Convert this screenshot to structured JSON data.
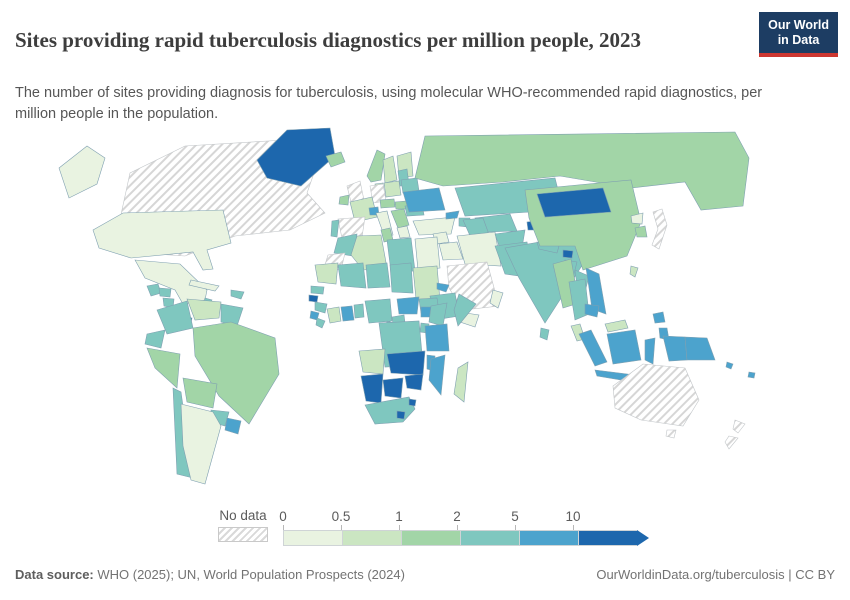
{
  "header": {
    "title": "Sites providing rapid tuberculosis diagnostics per million people, 2023",
    "logo": {
      "line1": "Our World",
      "line2": "in Data"
    }
  },
  "subtitle": "The number of sites providing diagnosis for tuberculosis, using molecular WHO-recommended rapid diagnostics, per million people in the population.",
  "legend": {
    "no_data_label": "No data",
    "tick_labels": [
      "0",
      "0.5",
      "1",
      "2",
      "5",
      "10"
    ],
    "bin_colors": [
      "#e9f3e1",
      "#cbe6c2",
      "#a2d5a7",
      "#7fc7bf",
      "#4ca3cd",
      "#1d67ad"
    ]
  },
  "footer": {
    "source_label": "Data source:",
    "source_text": " WHO (2025); UN, World Population Prospects (2024)",
    "link_text": "OurWorldinData.org/tuberculosis | CC BY"
  },
  "colors": {
    "logo_bg": "#1d3d63",
    "logo_red": "#cd3731",
    "title_text": "#3d3d3d",
    "border_stroke": "#7fa0b1",
    "no_data_stroke": "#c2c6c9"
  },
  "chart_data": {
    "type": "choropleth",
    "title": "Sites providing rapid tuberculosis diagnostics per million people",
    "year": 2023,
    "unit": "sites per million people",
    "legend_position": "bottom",
    "bins": [
      {
        "range": "0-0.5",
        "color": "#e9f3e1"
      },
      {
        "range": "0.5-1",
        "color": "#cbe6c2"
      },
      {
        "range": "1-2",
        "color": "#a2d5a7"
      },
      {
        "range": "2-5",
        "color": "#7fc7bf"
      },
      {
        "range": "5-10",
        "color": "#4ca3cd"
      },
      {
        "range": "10+",
        "color": "#1d67ad"
      },
      {
        "range": "no-data",
        "color": "hatched"
      }
    ],
    "countries": {
      "canada": "no-data",
      "usa": "0-0.5",
      "mexico": "0-0.5",
      "greenland": "10+",
      "cuba": "0-0.5",
      "jamaica": "2-5",
      "hispaniola": "2-5",
      "guatemala": "2-5",
      "honduras": "2-5",
      "nicaragua": "2-5",
      "costa-rica": "5-10",
      "panama": "10+",
      "colombia": "2-5",
      "venezuela": "0.5-1",
      "guyana": "2-5",
      "ecuador": "2-5",
      "peru": "1-2",
      "brazil": "1-2",
      "bolivia": "1-2",
      "paraguay": "2-5",
      "chile": "2-5",
      "argentina": "0-0.5",
      "uruguay": "5-10",
      "iceland": "1-2",
      "ireland": "1-2",
      "uk": "no-data",
      "norway": "1-2",
      "sweden": "0.5-1",
      "finland": "0.5-1",
      "denmark": "0.5-1",
      "baltics": "2-5",
      "germany": "no-data",
      "france": "0.5-1",
      "spain": "no-data",
      "portugal": "2-5",
      "switzerland": "5-10",
      "italy": "0-0.5",
      "poland": "0.5-1",
      "czechia-austria": "1-2",
      "hungary-slovakia": "1-2",
      "balkans": "1-2",
      "greece": "0-0.5",
      "romania": "2-5",
      "moldova": "10+",
      "ukraine": "5-10",
      "belarus": "2-5",
      "russia": "1-2",
      "turkey": "0-0.5",
      "georgia": "5-10",
      "azerbaijan": "2-5",
      "kazakhstan": "2-5",
      "uzbekistan": "2-5",
      "turkmenistan": "2-5",
      "kyrgyzstan": "5-10",
      "tajikistan": "10+",
      "syria": "0-0.5",
      "iraq": "0-0.5",
      "iran": "0-0.5",
      "saudi-arabia": "no-data",
      "yemen": "0-0.5",
      "oman": "0-0.5",
      "afghanistan": "2-5",
      "pakistan": "2-5",
      "india": "2-5",
      "nepal": "2-5",
      "bhutan": "10+",
      "bangladesh": "2-5",
      "sri-lanka": "2-5",
      "china": "1-2",
      "mongolia": "10+",
      "north-korea": "0-0.5",
      "south-korea": "1-2",
      "japan": "no-data",
      "taiwan": "0.5-1",
      "myanmar": "1-2",
      "laos": "2-5",
      "thailand": "2-5",
      "vietnam": "5-10",
      "cambodia": "5-10",
      "malaysia": "0.5-1",
      "philippines": "5-10",
      "indonesia": "5-10",
      "timor-leste": "5-10",
      "papua-new-guinea": "5-10",
      "solomon-islands": "5-10",
      "fiji": "5-10",
      "australia": "no-data",
      "tasmania": "no-data",
      "new-zealand": "no-data",
      "morocco": "2-5",
      "western-sahara": "no-data",
      "algeria": "0.5-1",
      "tunisia": "1-2",
      "libya": "2-5",
      "egypt": "0-0.5",
      "mauritania": "0.5-1",
      "mali": "2-5",
      "niger": "2-5",
      "chad": "2-5",
      "sudan": "0.5-1",
      "eritrea": "5-10",
      "senegal": "2-5",
      "guinea-bissau": "10+",
      "guinea": "2-5",
      "sierra-leone": "5-10",
      "liberia": "2-5",
      "cote-divoire": "0.5-1",
      "ghana": "5-10",
      "togo-benin": "2-5",
      "nigeria": "2-5",
      "cameroon": "2-5",
      "central-african-republic": "5-10",
      "south-sudan": "2-5",
      "ethiopia": "2-5",
      "somalia": "2-5",
      "uganda": "5-10",
      "kenya": "2-5",
      "rwanda-burundi": "2-5",
      "drc": "2-5",
      "gabon-congo": "2-5",
      "tanzania": "5-10",
      "angola": "0.5-1",
      "zambia": "10+",
      "malawi": "5-10",
      "mozambique": "5-10",
      "zimbabwe": "10+",
      "botswana": "10+",
      "namibia": "10+",
      "south-africa": "2-5",
      "lesotho": "10+",
      "eswatini": "10+",
      "madagascar": "0.5-1"
    }
  }
}
